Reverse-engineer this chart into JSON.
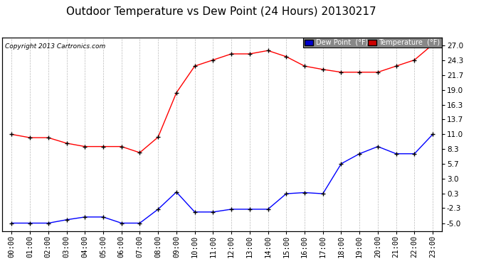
{
  "title": "Outdoor Temperature vs Dew Point (24 Hours) 20130217",
  "copyright": "Copyright 2013 Cartronics.com",
  "hours": [
    "00:00",
    "01:00",
    "02:00",
    "03:00",
    "04:00",
    "05:00",
    "06:00",
    "07:00",
    "08:00",
    "09:00",
    "10:00",
    "11:00",
    "12:00",
    "13:00",
    "14:00",
    "15:00",
    "16:00",
    "17:00",
    "18:00",
    "19:00",
    "20:00",
    "21:00",
    "22:00",
    "23:00"
  ],
  "temperature": [
    11.0,
    10.4,
    10.4,
    9.4,
    8.8,
    8.8,
    8.8,
    7.7,
    10.5,
    18.5,
    23.3,
    24.4,
    25.5,
    25.5,
    26.1,
    25.0,
    23.3,
    22.7,
    22.2,
    22.2,
    22.2,
    23.3,
    24.4,
    27.2
  ],
  "dew_point": [
    -5.0,
    -5.0,
    -5.0,
    -4.4,
    -3.9,
    -3.9,
    -5.0,
    -5.0,
    -2.5,
    0.6,
    -3.0,
    -3.0,
    -2.5,
    -2.5,
    -2.5,
    0.3,
    0.5,
    0.3,
    5.7,
    7.5,
    8.8,
    7.5,
    7.5,
    11.0
  ],
  "temp_color": "#FF0000",
  "dew_color": "#0000FF",
  "bg_color": "#FFFFFF",
  "plot_bg_color": "#FFFFFF",
  "grid_color": "#BBBBBB",
  "ytick_labels": [
    "-5.0",
    "-2.3",
    "0.3",
    "3.0",
    "5.7",
    "8.3",
    "11.0",
    "13.7",
    "16.3",
    "19.0",
    "21.7",
    "24.3",
    "27.0"
  ],
  "ytick_values": [
    -5.0,
    -2.3,
    0.3,
    3.0,
    5.7,
    8.3,
    11.0,
    13.7,
    16.3,
    19.0,
    21.7,
    24.3,
    27.0
  ],
  "ylim": [
    -6.5,
    28.5
  ],
  "legend_dew_bg": "#0000CC",
  "legend_temp_bg": "#CC0000",
  "legend_text_color": "#FFFFFF",
  "title_fontsize": 11,
  "tick_fontsize": 7.5,
  "copyright_fontsize": 6.5,
  "legend_fontsize": 7
}
